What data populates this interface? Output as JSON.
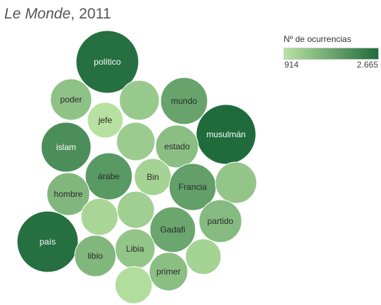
{
  "title": {
    "italic": "Le Monde",
    "rest": ", 2011"
  },
  "legend": {
    "title": "Nº de ocurrencias",
    "min_label": "914",
    "max_label": "2.665",
    "color_low": "#b9e3a2",
    "color_high": "#1f6b3c"
  },
  "chart_data": {
    "type": "bubble",
    "value_range": [
      914,
      2665
    ],
    "items": [
      {
        "label": "político",
        "value": 2600
      },
      {
        "label": "poder",
        "value": 1400
      },
      {
        "label": "",
        "value": 1300
      },
      {
        "label": "mundo",
        "value": 1850
      },
      {
        "label": "jefe",
        "value": 950
      },
      {
        "label": "musulmán",
        "value": 2665
      },
      {
        "label": "islam",
        "value": 2150
      },
      {
        "label": "",
        "value": 1250
      },
      {
        "label": "estado",
        "value": 1450
      },
      {
        "label": "árabe",
        "value": 2000
      },
      {
        "label": "Bin",
        "value": 1150
      },
      {
        "label": "Francia",
        "value": 1900
      },
      {
        "label": "",
        "value": 1350
      },
      {
        "label": "hombre",
        "value": 1550
      },
      {
        "label": "",
        "value": 1100
      },
      {
        "label": "",
        "value": 1200
      },
      {
        "label": "partido",
        "value": 1500
      },
      {
        "label": "país",
        "value": 2600
      },
      {
        "label": "Gadafi",
        "value": 1800
      },
      {
        "label": "Libia",
        "value": 1350
      },
      {
        "label": "libio",
        "value": 1550
      },
      {
        "label": "",
        "value": 1000
      },
      {
        "label": "primer",
        "value": 1450
      },
      {
        "label": "",
        "value": 1150
      }
    ]
  }
}
